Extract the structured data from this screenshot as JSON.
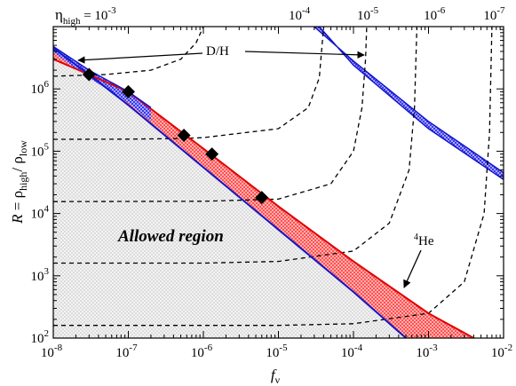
{
  "chart_data": {
    "type": "line",
    "title": "",
    "x_scale": "log",
    "y_scale": "log",
    "xlim": [
      1e-08,
      0.01
    ],
    "ylim": [
      100,
      10000000
    ],
    "xlabel_main": "f",
    "xlabel_sub": "ν",
    "ylabel": {
      "var": "R",
      "eq": " = ρ",
      "sub1": "high",
      "slash": "/ ρ",
      "sub2": "low"
    },
    "x_ticks": [
      {
        "value": 1e-08,
        "base": "10",
        "exp": "-8"
      },
      {
        "value": 1e-07,
        "base": "10",
        "exp": "-7"
      },
      {
        "value": 1e-06,
        "base": "10",
        "exp": "-6"
      },
      {
        "value": 1e-05,
        "base": "10",
        "exp": "-5"
      },
      {
        "value": 0.0001,
        "base": "10",
        "exp": "-4"
      },
      {
        "value": 0.001,
        "base": "10",
        "exp": "-3"
      },
      {
        "value": 0.01,
        "base": "10",
        "exp": "-2"
      }
    ],
    "y_ticks": [
      {
        "value": 100,
        "base": "10",
        "exp": "2"
      },
      {
        "value": 1000,
        "base": "10",
        "exp": "3"
      },
      {
        "value": 10000,
        "base": "10",
        "exp": "4"
      },
      {
        "value": 100000,
        "base": "10",
        "exp": "5"
      },
      {
        "value": 1000000,
        "base": "10",
        "exp": "6"
      }
    ],
    "eta_labels": {
      "prefix": "η",
      "prefix_sub": "high",
      "equals": " = ",
      "items": [
        {
          "text": "10",
          "exp": "-3",
          "x": 1.1e-07
        },
        {
          "text": "10",
          "exp": "-4",
          "x": 1.9e-05
        },
        {
          "text": "10",
          "exp": "-5",
          "x": 0.000155
        },
        {
          "text": "10",
          "exp": "-6",
          "x": 0.0012
        },
        {
          "text": "10",
          "exp": "-7",
          "x": 0.0075
        }
      ]
    },
    "eta_curves": [
      {
        "eta": "1e-3",
        "points": [
          [
            1e-08,
            1600000.0
          ],
          [
            5e-08,
            1700000.0
          ],
          [
            2e-07,
            2000000.0
          ],
          [
            5e-07,
            3000000.0
          ],
          [
            8e-07,
            5500000.0
          ],
          [
            1e-06,
            10000000.0
          ]
        ]
      },
      {
        "eta": "1e-4",
        "points": [
          [
            1e-08,
            155000.0
          ],
          [
            1e-07,
            156000.0
          ],
          [
            5e-07,
            160000.0
          ],
          [
            1e-06,
            165000.0
          ],
          [
            1e-05,
            230000.0
          ],
          [
            2.5e-05,
            500000.0
          ],
          [
            3.5e-05,
            1500000.0
          ],
          [
            4e-05,
            10000000.0
          ]
        ]
      },
      {
        "eta": "1e-5",
        "points": [
          [
            1e-08,
            15500.0
          ],
          [
            1e-06,
            15700.0
          ],
          [
            1e-05,
            17000.0
          ],
          [
            5e-05,
            30000.0
          ],
          [
            0.0001,
            100000.0
          ],
          [
            0.00013,
            500000.0
          ],
          [
            0.000145,
            3000000.0
          ],
          [
            0.00015,
            10000000.0
          ]
        ]
      },
      {
        "eta": "1e-6",
        "points": [
          [
            1e-08,
            1600.0
          ],
          [
            1e-06,
            1600.0
          ],
          [
            1e-05,
            1700.0
          ],
          [
            0.0001,
            2500.0
          ],
          [
            0.0003,
            7000.0
          ],
          [
            0.00055,
            50000.0
          ],
          [
            0.00065,
            500000.0
          ],
          [
            0.0007,
            10000000.0
          ]
        ]
      },
      {
        "eta": "1e-7",
        "points": [
          [
            1e-08,
            160.0
          ],
          [
            1e-05,
            160.0
          ],
          [
            0.0001,
            170.0
          ],
          [
            0.001,
            250.0
          ],
          [
            0.003,
            800.0
          ],
          [
            0.0055,
            10000.0
          ],
          [
            0.0065,
            200000.0
          ],
          [
            0.007,
            10000000.0
          ]
        ]
      }
    ],
    "allowed_lower_boundary": [
      [
        1e-08,
        4500000.0
      ],
      [
        3e-08,
        1700000.0
      ],
      [
        1e-07,
        550000.0
      ],
      [
        1e-06,
        55000.0
      ],
      [
        1e-05,
        5500.0
      ],
      [
        0.0001,
        550.0
      ],
      [
        0.0005,
        100.0
      ]
    ],
    "he4_upper_boundary": [
      [
        1e-08,
        3000000.0
      ],
      [
        3e-08,
        1700000.0
      ],
      [
        1e-07,
        900000.0
      ],
      [
        1e-06,
        110000.0
      ],
      [
        1e-05,
        13000.0
      ],
      [
        0.0001,
        1700.0
      ],
      [
        0.001,
        250.0
      ],
      [
        0.004,
        100.0
      ]
    ],
    "dh_band_upper": [
      [
        1e-08,
        4800000.0
      ],
      [
        3e-08,
        2000000.0
      ],
      [
        1e-07,
        900000.0
      ],
      [
        2e-07,
        500000.0
      ]
    ],
    "dh_band_lower": [
      [
        1e-08,
        3900000.0
      ],
      [
        3e-08,
        1500000.0
      ],
      [
        1e-07,
        600000.0
      ],
      [
        2e-07,
        300000.0
      ]
    ],
    "dh_band_right_upper": [
      [
        3e-05,
        10000000.0
      ],
      [
        0.0001,
        2800000.0
      ],
      [
        0.001,
        300000.0
      ],
      [
        0.01,
        45000.0
      ]
    ],
    "dh_band_right_lower": [
      [
        3.5e-05,
        10000000.0
      ],
      [
        0.0001,
        2400000.0
      ],
      [
        0.001,
        230000.0
      ],
      [
        0.01,
        35000.0
      ]
    ],
    "diamond_points": [
      [
        3e-08,
        1700000.0
      ],
      [
        1e-07,
        900000.0
      ],
      [
        5.5e-07,
        180000.0
      ],
      [
        1.3e-06,
        90000.0
      ],
      [
        6e-06,
        18000.0
      ]
    ],
    "annotations": {
      "dh": "D/H",
      "he4_sup": "4",
      "he4": "He",
      "allowed": "Allowed region"
    },
    "colors": {
      "allowed_fill": "#e0e0e0",
      "red": "#e00000",
      "red_fill": "#ff8888",
      "blue": "#1515c8",
      "blue_fill": "#6f6fff"
    }
  }
}
